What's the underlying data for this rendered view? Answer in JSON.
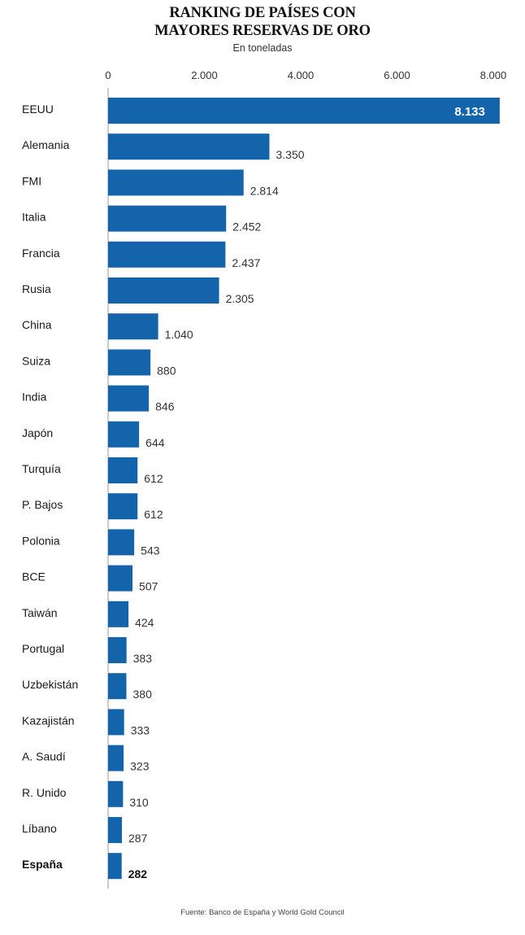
{
  "title_line1": "RANKING DE PAÍSES CON",
  "title_line2": "MAYORES RESERVAS DE ORO",
  "subtitle": "En toneladas",
  "source": "Fuente: Banco de España y World Gold Council",
  "colors": {
    "bar": "#1464AC",
    "axis": "#999999",
    "highlight_text": "#111111"
  },
  "chart_data": {
    "type": "bar",
    "orientation": "horizontal",
    "title": "RANKING DE PAÍSES CON MAYORES RESERVAS DE ORO",
    "subtitle": "En toneladas",
    "categories": [
      "EEUU",
      "Alemania",
      "FMI",
      "Italia",
      "Francia",
      "Rusia",
      "China",
      "Suiza",
      "India",
      "Japón",
      "Turquía",
      "P. Bajos",
      "Polonia",
      "BCE",
      "Taiwán",
      "Portugal",
      "Uzbekistán",
      "Kazajistán",
      "A. Saudí",
      "R. Unido",
      "Líbano",
      "España"
    ],
    "values": [
      8133,
      3350,
      2814,
      2452,
      2437,
      2305,
      1040,
      880,
      846,
      644,
      612,
      612,
      543,
      507,
      424,
      383,
      380,
      333,
      323,
      310,
      287,
      282
    ],
    "value_labels": [
      "8.133",
      "3.350",
      "2.814",
      "2.452",
      "2.437",
      "2.305",
      "1.040",
      "880",
      "846",
      "644",
      "612",
      "612",
      "543",
      "507",
      "424",
      "383",
      "380",
      "333",
      "323",
      "310",
      "287",
      "282"
    ],
    "highlighted": "España",
    "xlim": [
      0,
      8000
    ],
    "xticks": [
      0,
      2000,
      4000,
      6000,
      8000
    ],
    "xtick_labels": [
      "0",
      "2.000",
      "4.000",
      "6.000",
      "8.000"
    ],
    "axis_position": "top",
    "grid": false,
    "legend": "none"
  }
}
